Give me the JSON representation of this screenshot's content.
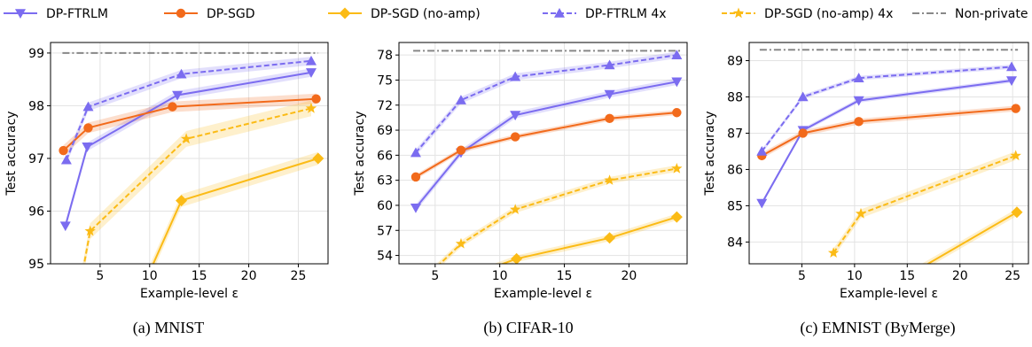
{
  "legend": [
    {
      "label": "DP-FTRLM",
      "color": "#7b6cf0",
      "dash": "solid",
      "marker": "tri-down"
    },
    {
      "label": "DP-SGD",
      "color": "#f26a1b",
      "dash": "solid",
      "marker": "circle"
    },
    {
      "label": "DP-SGD (no-amp)",
      "color": "#fbbb16",
      "dash": "solid",
      "marker": "diamond"
    },
    {
      "label": "DP-FTRLM 4x",
      "color": "#7b6cf0",
      "dash": "dashed",
      "marker": "tri-up"
    },
    {
      "label": "DP-SGD (no-amp) 4x",
      "color": "#fbbb16",
      "dash": "dashed",
      "marker": "star"
    },
    {
      "label": "Non-private",
      "color": "#888888",
      "dash": "dashdot",
      "marker": "none"
    }
  ],
  "chart_data": [
    {
      "type": "line",
      "caption": "(a) MNIST",
      "xlabel": "Example-level ε",
      "ylabel": "Test accuracy",
      "xlim": [
        0,
        28
      ],
      "ylim": [
        95,
        99.2
      ],
      "xticks": [
        5,
        10,
        15,
        20,
        25
      ],
      "yticks": [
        95,
        96,
        97,
        98,
        99
      ],
      "grid": true,
      "baseline": {
        "name": "Non-private",
        "y": 99.0,
        "x_range": [
          1.2,
          27
        ]
      },
      "series": [
        {
          "name": "DP-FTRLM",
          "x": [
            1.5,
            3.7,
            12.8,
            26.3
          ],
          "y": [
            95.72,
            97.22,
            98.2,
            98.63
          ],
          "band": 0.08
        },
        {
          "name": "DP-SGD",
          "x": [
            1.3,
            3.8,
            12.3,
            26.8
          ],
          "y": [
            97.15,
            97.58,
            97.98,
            98.13
          ],
          "band": 0.1
        },
        {
          "name": "DP-SGD (no-amp)",
          "x": [
            8.7,
            13.2,
            27.0
          ],
          "y": [
            94.3,
            96.2,
            97.0
          ],
          "band": 0.12
        },
        {
          "name": "DP-FTRLM 4x",
          "x": [
            1.6,
            3.8,
            13.2,
            26.3
          ],
          "y": [
            96.97,
            97.98,
            98.6,
            98.85
          ],
          "band": 0.08
        },
        {
          "name": "DP-SGD (no-amp) 4x",
          "x": [
            2.7,
            4.0,
            13.7,
            26.3
          ],
          "y": [
            94.3,
            95.62,
            97.37,
            97.95
          ],
          "band": 0.15
        }
      ]
    },
    {
      "type": "line",
      "caption": "(b) CIFAR-10",
      "xlabel": "Example-level ε",
      "ylabel": "Test accuracy",
      "xlim": [
        2.2,
        24.5
      ],
      "ylim": [
        53,
        79.5
      ],
      "xticks": [
        5,
        10,
        15,
        20
      ],
      "yticks": [
        54,
        57,
        60,
        63,
        66,
        69,
        72,
        75,
        78
      ],
      "grid": true,
      "baseline": {
        "name": "Non-private",
        "y": 78.5,
        "x_range": [
          3.3,
          24
        ]
      },
      "series": [
        {
          "name": "DP-FTRLM",
          "x": [
            3.5,
            7.0,
            11.2,
            18.5,
            23.7
          ],
          "y": [
            59.7,
            66.3,
            70.8,
            73.3,
            74.8
          ],
          "band": 0.4
        },
        {
          "name": "DP-SGD",
          "x": [
            3.5,
            7.0,
            11.2,
            18.5,
            23.7
          ],
          "y": [
            63.4,
            66.6,
            68.2,
            70.4,
            71.1
          ],
          "band": 0.3
        },
        {
          "name": "DP-SGD (no-amp)",
          "x": [
            8.5,
            11.3,
            18.5,
            23.7
          ],
          "y": [
            52.0,
            53.6,
            56.1,
            58.6
          ],
          "band": 0.4
        },
        {
          "name": "DP-FTRLM 4x",
          "x": [
            3.5,
            7.0,
            11.2,
            18.5,
            23.7
          ],
          "y": [
            66.3,
            72.6,
            75.4,
            76.8,
            78.0
          ],
          "band": 0.4
        },
        {
          "name": "DP-SGD (no-amp) 4x",
          "x": [
            4.7,
            7.0,
            11.2,
            18.5,
            23.7
          ],
          "y": [
            52.0,
            55.4,
            59.5,
            63.0,
            64.4
          ],
          "band": 0.4
        }
      ]
    },
    {
      "type": "line",
      "caption": "(c) EMNIST (ByMerge)",
      "xlabel": "Example-level ε",
      "ylabel": "Test accuracy",
      "xlim": [
        0,
        26.5
      ],
      "ylim": [
        83.4,
        89.5
      ],
      "xticks": [
        5,
        10,
        15,
        20,
        25
      ],
      "yticks": [
        84,
        85,
        86,
        87,
        88,
        89
      ],
      "grid": true,
      "baseline": {
        "name": "Non-private",
        "y": 89.3,
        "x_range": [
          1.0,
          25.5
        ]
      },
      "series": [
        {
          "name": "DP-FTRLM",
          "x": [
            1.2,
            5.1,
            10.4,
            24.9
          ],
          "y": [
            85.07,
            87.08,
            87.9,
            88.45
          ],
          "band": 0.06
        },
        {
          "name": "DP-SGD",
          "x": [
            1.2,
            5.1,
            10.4,
            25.3
          ],
          "y": [
            86.38,
            87.0,
            87.32,
            87.68
          ],
          "band": 0.08
        },
        {
          "name": "DP-SGD (no-amp)",
          "x": [
            14.0,
            25.4
          ],
          "y": [
            82.9,
            84.82
          ],
          "band": 0.1
        },
        {
          "name": "DP-FTRLM 4x",
          "x": [
            1.2,
            5.1,
            10.4,
            24.9
          ],
          "y": [
            86.5,
            88.0,
            88.52,
            88.83
          ],
          "band": 0.06
        },
        {
          "name": "DP-SGD (no-amp) 4x",
          "x": [
            8.0,
            10.6,
            25.3
          ],
          "y": [
            83.7,
            84.78,
            86.38
          ],
          "band": 0.12
        }
      ]
    }
  ]
}
